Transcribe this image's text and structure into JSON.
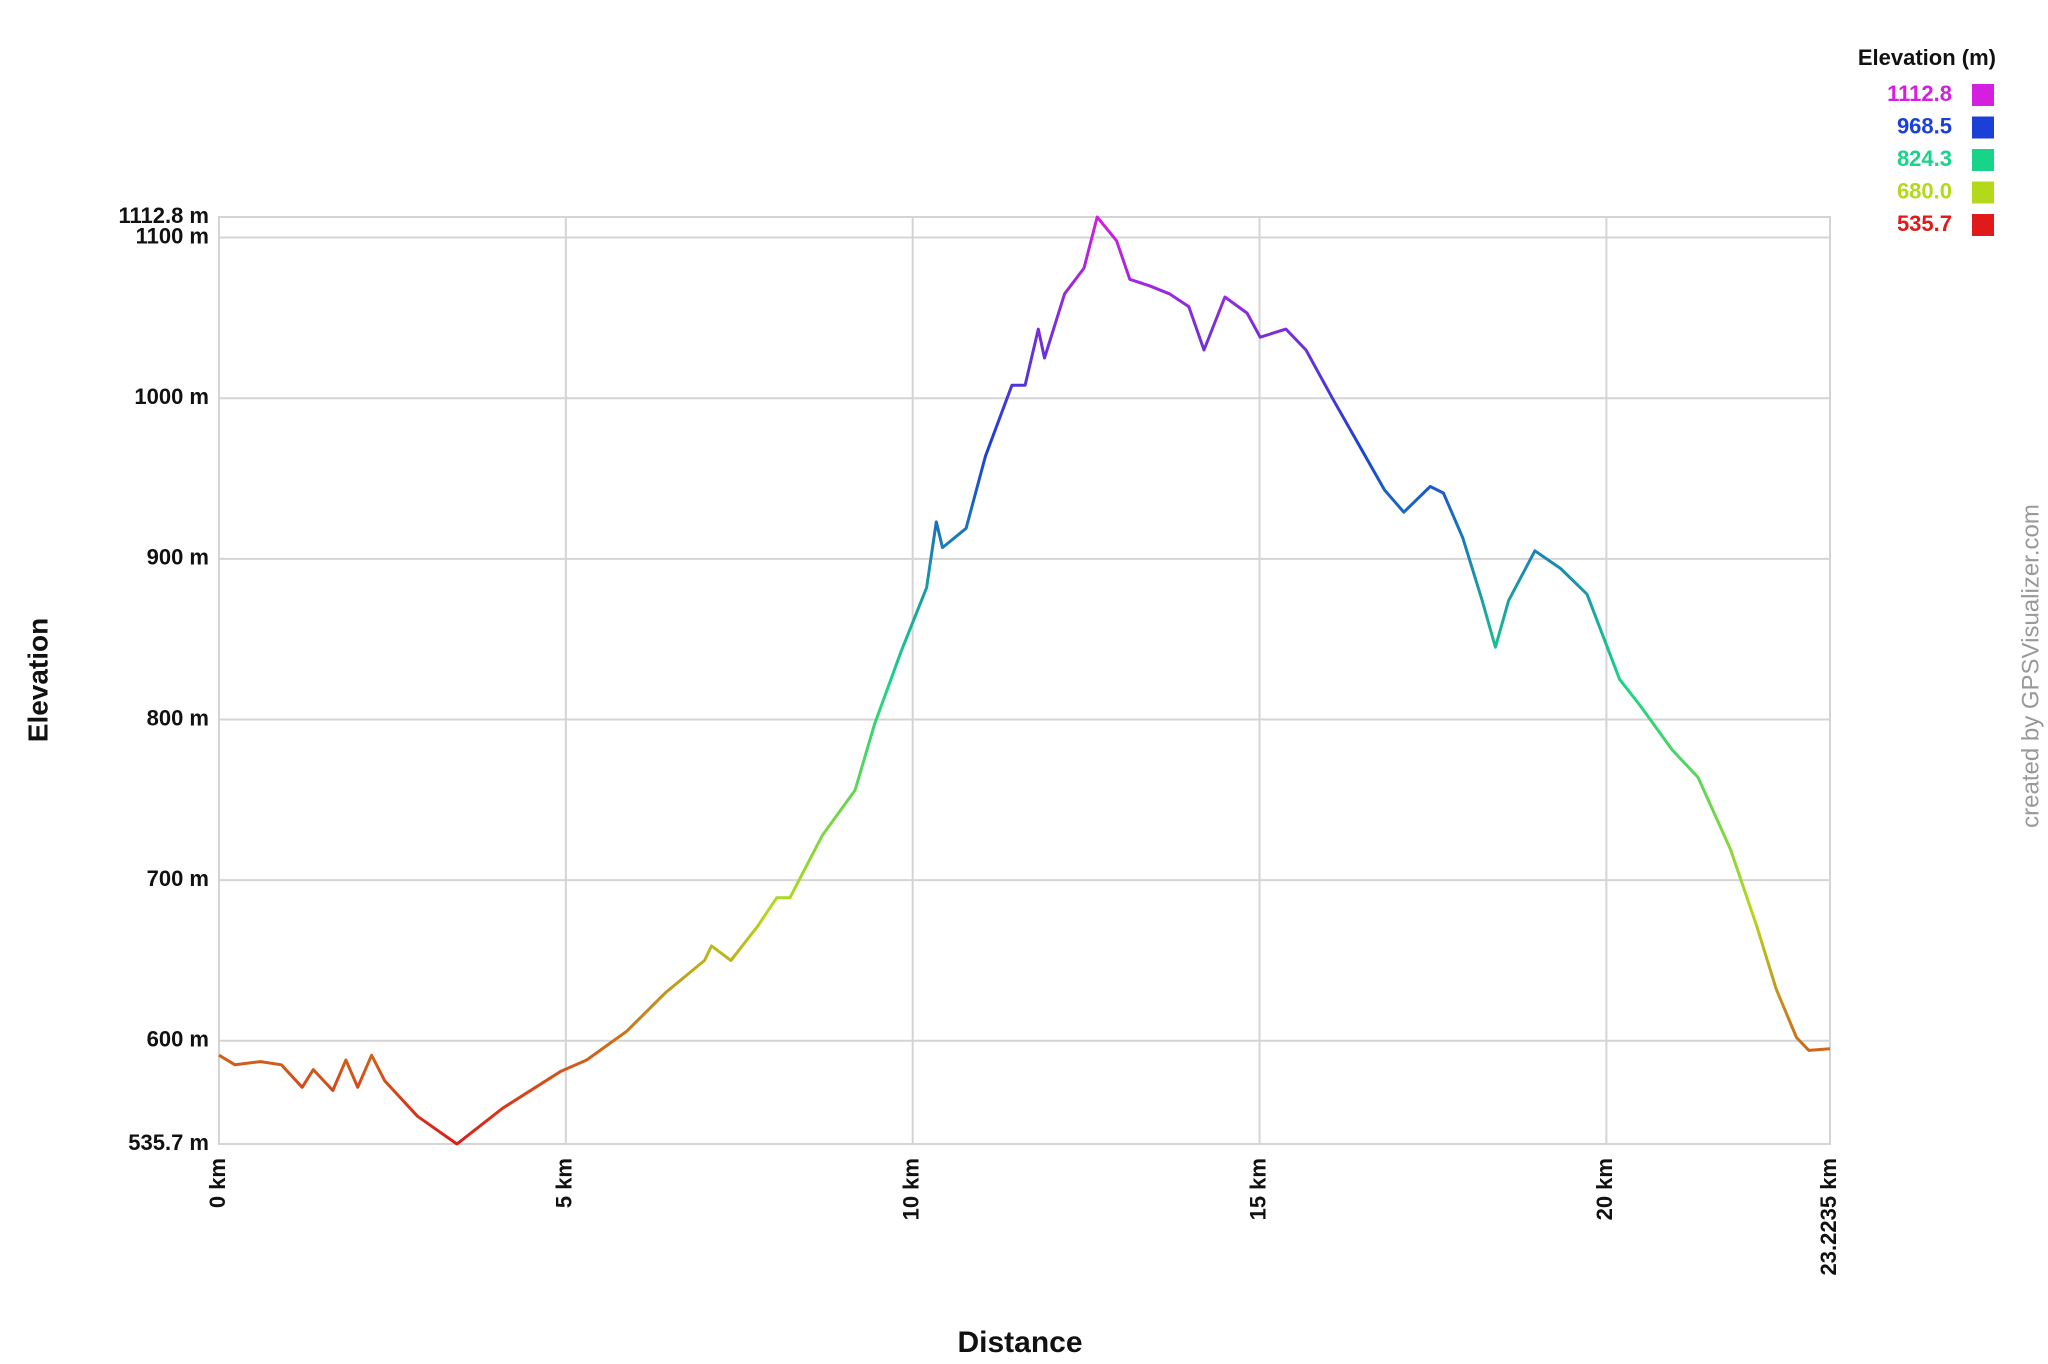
{
  "chart_data": {
    "type": "line",
    "title": null,
    "x_label": "Distance",
    "y_label": "Elevation",
    "watermark": "created by GPSVisualizer.com",
    "x": [
      0,
      0.23,
      0.6,
      0.9,
      1.2,
      1.36,
      1.64,
      1.83,
      2.0,
      2.2,
      2.39,
      2.86,
      3.43,
      4.09,
      4.93,
      5.3,
      5.88,
      6.44,
      7.0,
      7.1,
      7.38,
      7.76,
      8.04,
      8.23,
      8.7,
      9.17,
      9.45,
      9.83,
      10.2,
      10.34,
      10.43,
      10.77,
      11.05,
      11.43,
      11.62,
      11.81,
      11.9,
      12.19,
      12.47,
      12.66,
      12.94,
      13.13,
      13.41,
      13.7,
      13.98,
      14.2,
      14.5,
      14.82,
      15.01,
      15.38,
      15.67,
      16.05,
      16.42,
      16.8,
      17.08,
      17.46,
      17.65,
      17.93,
      18.21,
      18.4,
      18.59,
      18.97,
      19.34,
      19.72,
      20.19,
      20.48,
      20.95,
      21.32,
      21.79,
      22.17,
      22.45,
      22.74,
      22.92,
      23.2235
    ],
    "values": [
      591,
      585,
      587,
      585,
      571,
      582,
      569,
      588,
      571,
      591,
      575,
      553,
      535.7,
      558,
      581,
      588,
      606,
      630,
      650,
      659,
      650,
      671,
      689,
      689,
      728,
      756,
      797,
      842,
      882,
      923,
      907,
      919,
      964,
      1008,
      1008,
      1043,
      1025,
      1065,
      1081,
      1112.8,
      1098,
      1074,
      1070,
      1065,
      1057,
      1030,
      1063,
      1053,
      1038,
      1043,
      1030,
      1000,
      972,
      943,
      929,
      945,
      941,
      913,
      874,
      845,
      874,
      905,
      894,
      878,
      825,
      809,
      781,
      764,
      719,
      671,
      632,
      602,
      594,
      595
    ],
    "xlim": [
      0,
      23.2235
    ],
    "ylim": [
      535.7,
      1112.8
    ],
    "xticks": [
      {
        "value": 0,
        "label": "0 km"
      },
      {
        "value": 5,
        "label": "5 km"
      },
      {
        "value": 10,
        "label": "10 km"
      },
      {
        "value": 15,
        "label": "15 km"
      },
      {
        "value": 20,
        "label": "20 km"
      },
      {
        "value": 23.2235,
        "label": "23.2235 km"
      }
    ],
    "yticks": [
      {
        "value": 535.7,
        "label": "535.7 m"
      },
      {
        "value": 600,
        "label": "600 m"
      },
      {
        "value": 700,
        "label": "700 m"
      },
      {
        "value": 800,
        "label": "800 m"
      },
      {
        "value": 900,
        "label": "900 m"
      },
      {
        "value": 1000,
        "label": "1000 m"
      },
      {
        "value": 1100,
        "label": "1100 m"
      },
      {
        "value": 1112.8,
        "label": "1112.8 m"
      }
    ],
    "grid": true,
    "legend": {
      "title": "Elevation (m)",
      "position": "top-right",
      "items": [
        {
          "value": 1112.8,
          "color": "#d41ee0"
        },
        {
          "value": 968.5,
          "color": "#1a40d8"
        },
        {
          "value": 824.3,
          "color": "#18d488"
        },
        {
          "value": 680,
          "label": "680.0",
          "color": "#b4d81a"
        },
        {
          "value": 535.7,
          "color": "#e01a1a"
        }
      ]
    }
  }
}
